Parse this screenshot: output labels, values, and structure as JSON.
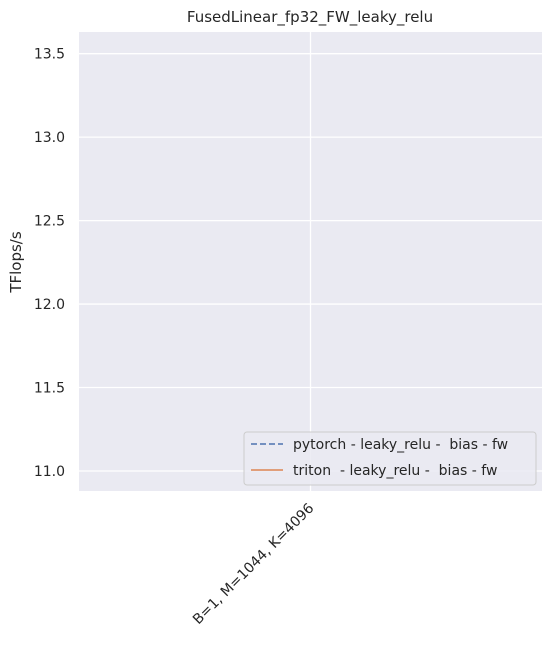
{
  "chart_data": {
    "type": "line",
    "title": "FusedLinear_fp32_FW_leaky_relu",
    "xlabel": "",
    "ylabel": "TFlops/s",
    "categories": [
      "B=1, M=1044, K=4096"
    ],
    "yticks": [
      "11.0",
      "11.5",
      "12.0",
      "12.5",
      "13.0",
      "13.5"
    ],
    "ylim": [
      10.88,
      13.63
    ],
    "grid": true,
    "legend_position": "lower-right",
    "series": [
      {
        "name": "pytorch - leaky_relu -  bias - fw",
        "values": [
          null
        ],
        "color": "#4c72b0",
        "style": "dashed"
      },
      {
        "name": "triton  - leaky_relu -  bias - fw",
        "values": [
          null
        ],
        "color": "#dd8452",
        "style": "solid"
      }
    ],
    "colors": {
      "plot_background": "#eaeaf2",
      "grid": "#ffffff",
      "text": "#262626"
    }
  }
}
